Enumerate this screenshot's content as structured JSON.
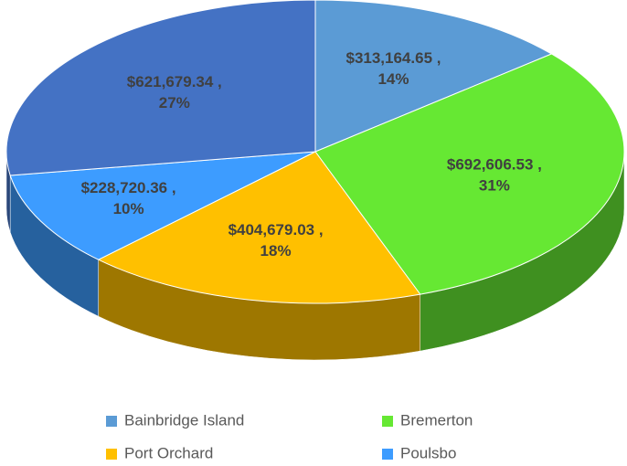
{
  "chart_data": {
    "type": "pie3d",
    "categories": [
      "Bainbridge Island",
      "Bremerton",
      "Port Orchard",
      "Poulsbo",
      null
    ],
    "values": [
      313164.65,
      692606.53,
      404679.03,
      228720.36,
      621679.34
    ],
    "value_labels": [
      [
        "$313,164.65 ,",
        "14%"
      ],
      [
        "$692,606.53 ,",
        "31%"
      ],
      [
        "$404,679.03 ,",
        "18%"
      ],
      [
        "$228,720.36 ,",
        "10%"
      ],
      [
        "$621,679.34 ,",
        "27%"
      ]
    ],
    "colors": [
      "#5b9bd5",
      "#66e833",
      "#ffc000",
      "#3d9cff",
      "#4472c4"
    ],
    "legend": "bottom"
  }
}
